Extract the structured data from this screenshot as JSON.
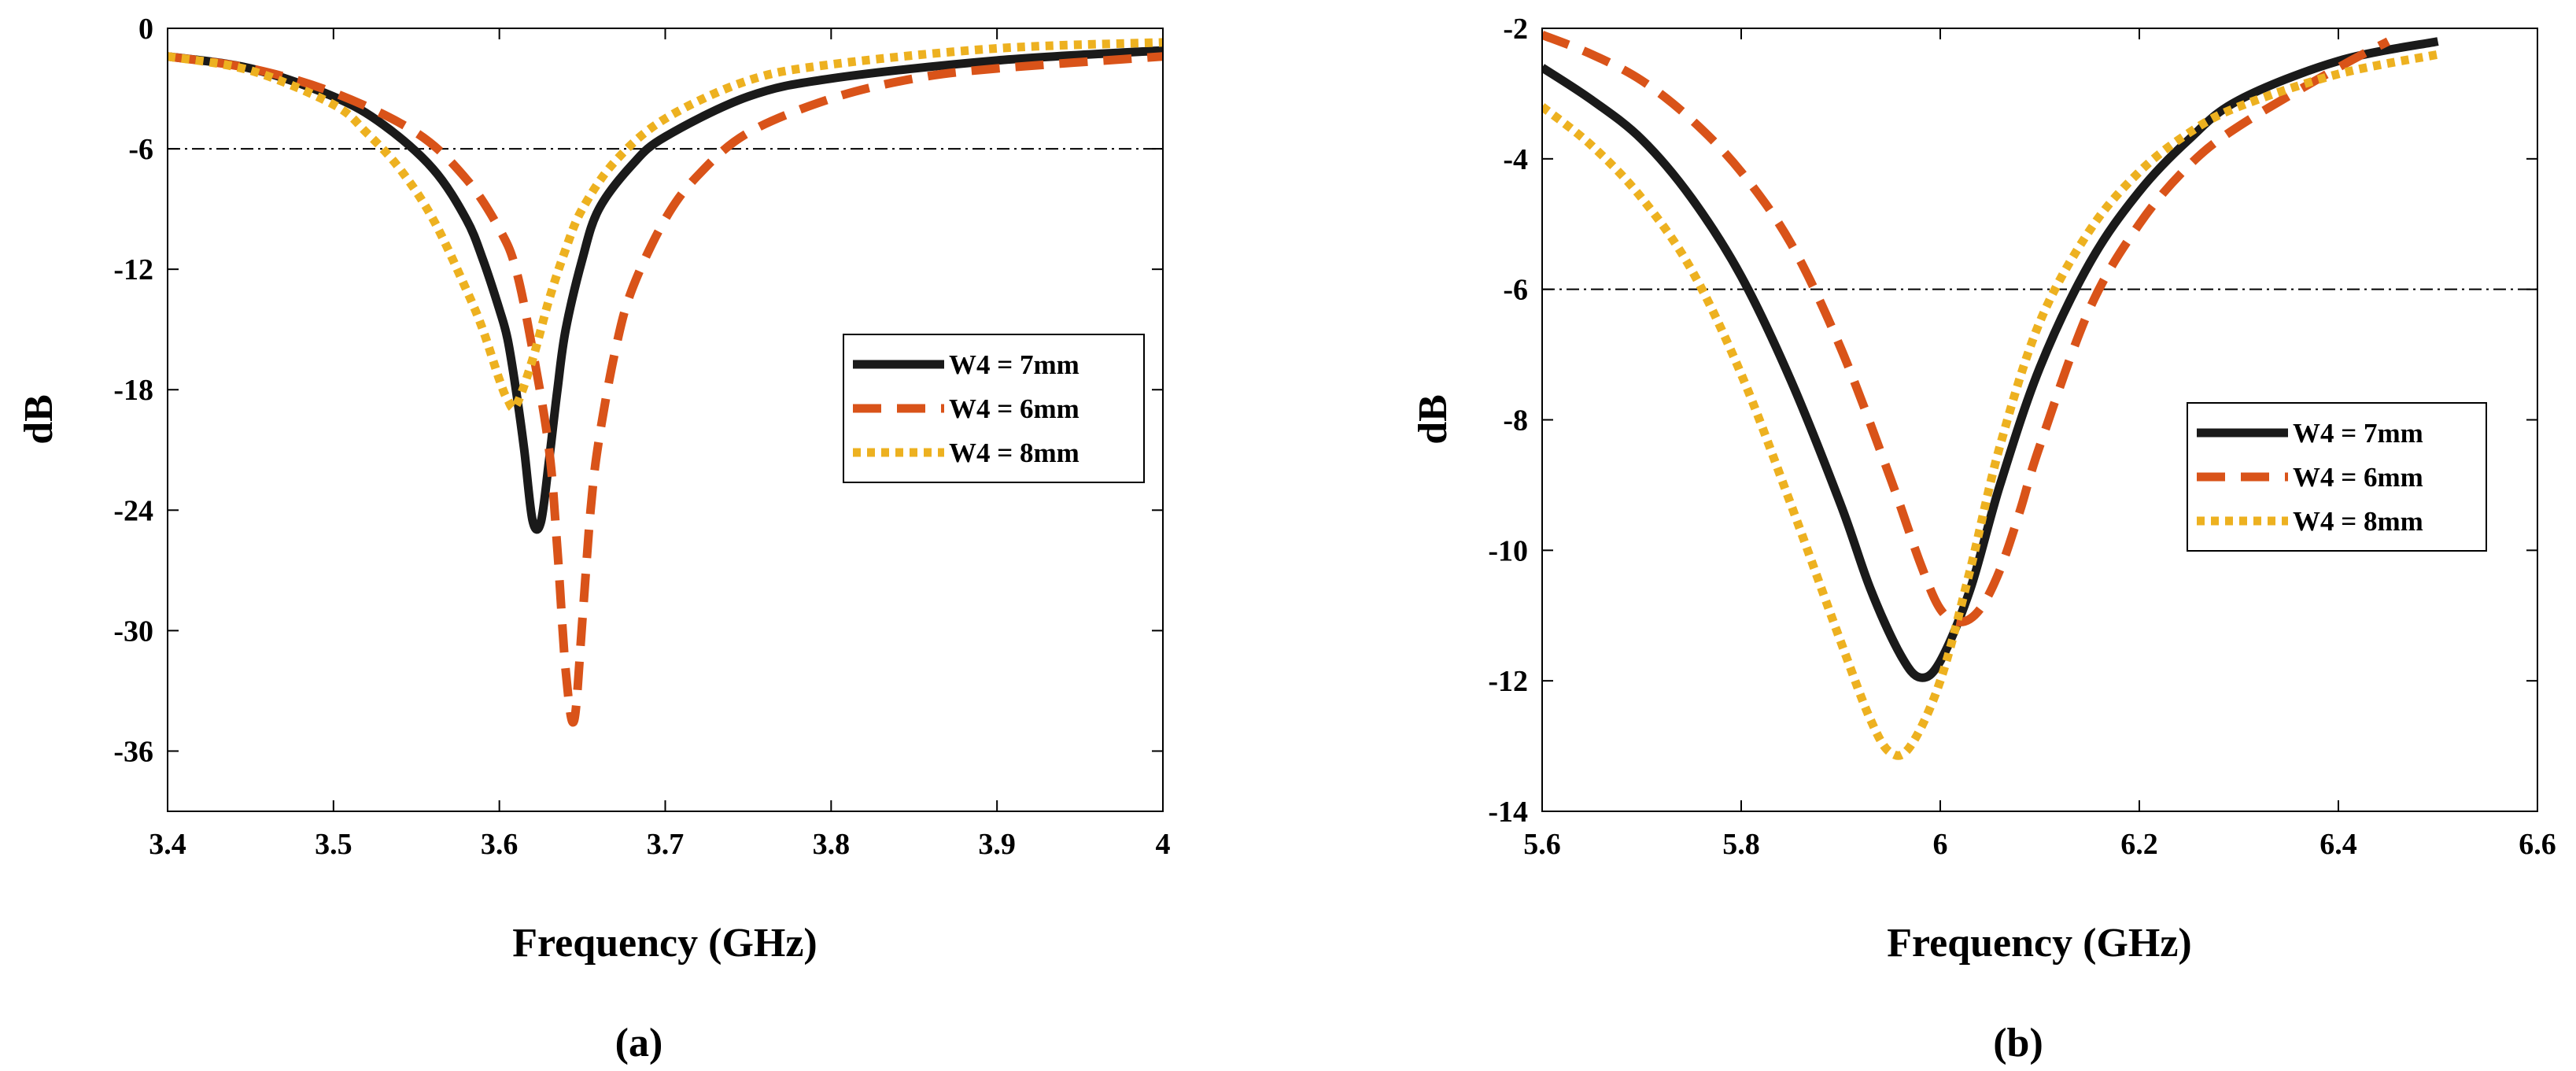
{
  "chart_data": [
    {
      "type": "line",
      "panel_label": "(a)",
      "xlabel": "Frequency (GHz)",
      "ylabel": "dB",
      "xlim": [
        3.4,
        4.0
      ],
      "ylim": [
        -39,
        0
      ],
      "xticks": [
        3.4,
        3.5,
        3.6,
        3.7,
        3.8,
        3.9,
        4.0
      ],
      "xtick_labels": [
        "3.4",
        "3.5",
        "3.6",
        "3.7",
        "3.8",
        "3.9",
        "4"
      ],
      "yticks": [
        0,
        -6,
        -12,
        -18,
        -24,
        -30,
        -36
      ],
      "ytick_labels": [
        "0",
        "-6",
        "-12",
        "-18",
        "-24",
        "-30",
        "-36"
      ],
      "reference_line": -6,
      "legend_position": "right",
      "series": [
        {
          "name": "W4 = 7mm",
          "color": "#1a1a1a",
          "style": "solid",
          "x": [
            3.4,
            3.45,
            3.5,
            3.53,
            3.56,
            3.58,
            3.59,
            3.6,
            3.605,
            3.61,
            3.615,
            3.62,
            3.625,
            3.63,
            3.635,
            3.64,
            3.65,
            3.66,
            3.68,
            3.7,
            3.75,
            3.8,
            3.9,
            4.0
          ],
          "y": [
            -1.4,
            -2.0,
            -3.4,
            -4.8,
            -7.0,
            -9.5,
            -11.5,
            -14.0,
            -15.5,
            -18.0,
            -21.0,
            -24.5,
            -24.6,
            -21.5,
            -18.0,
            -15.0,
            -11.5,
            -9.0,
            -6.8,
            -5.4,
            -3.4,
            -2.5,
            -1.6,
            -1.1
          ]
        },
        {
          "name": "W4 = 6mm",
          "color": "#d95319",
          "style": "dashed",
          "x": [
            3.4,
            3.45,
            3.5,
            3.55,
            3.58,
            3.6,
            3.61,
            3.62,
            3.63,
            3.635,
            3.64,
            3.645,
            3.65,
            3.655,
            3.66,
            3.67,
            3.68,
            3.7,
            3.72,
            3.75,
            3.8,
            3.85,
            3.9,
            4.0
          ],
          "y": [
            -1.4,
            -2.0,
            -3.2,
            -5.2,
            -7.5,
            -10.0,
            -12.0,
            -16.0,
            -21.0,
            -26.0,
            -32.0,
            -34.5,
            -29.5,
            -24.0,
            -20.5,
            -16.0,
            -13.0,
            -9.5,
            -7.3,
            -5.2,
            -3.5,
            -2.5,
            -2.0,
            -1.4
          ]
        },
        {
          "name": "W4 = 8mm",
          "color": "#edb120",
          "style": "dotted",
          "x": [
            3.4,
            3.45,
            3.5,
            3.52,
            3.54,
            3.56,
            3.58,
            3.59,
            3.6,
            3.605,
            3.61,
            3.62,
            3.63,
            3.64,
            3.65,
            3.67,
            3.7,
            3.75,
            3.8,
            3.9,
            4.0
          ],
          "y": [
            -1.4,
            -2.1,
            -3.8,
            -5.2,
            -7.0,
            -9.5,
            -13.0,
            -15.0,
            -17.5,
            -18.5,
            -18.8,
            -16.5,
            -13.5,
            -11.0,
            -9.0,
            -6.6,
            -4.5,
            -2.6,
            -1.8,
            -1.0,
            -0.7
          ]
        }
      ]
    },
    {
      "type": "line",
      "panel_label": "(b)",
      "xlabel": "Frequency (GHz)",
      "ylabel": "dB",
      "xlim": [
        5.6,
        6.6
      ],
      "ylim": [
        -14,
        -2
      ],
      "xticks": [
        5.6,
        5.8,
        6.0,
        6.2,
        6.4,
        6.6
      ],
      "xtick_labels": [
        "5.6",
        "5.8",
        "6",
        "6.2",
        "6.4",
        "6.6"
      ],
      "yticks": [
        -2,
        -4,
        -6,
        -8,
        -10,
        -12,
        -14
      ],
      "ytick_labels": [
        "-2",
        "-4",
        "-6",
        "-8",
        "-10",
        "-12",
        "-14"
      ],
      "reference_line": -6,
      "legend_position": "right",
      "series": [
        {
          "name": "W4 = 7mm",
          "color": "#1a1a1a",
          "style": "solid",
          "x": [
            5.6,
            5.65,
            5.7,
            5.75,
            5.8,
            5.85,
            5.9,
            5.93,
            5.96,
            5.98,
            6.0,
            6.03,
            6.06,
            6.1,
            6.15,
            6.2,
            6.25,
            6.3,
            6.4,
            6.5
          ],
          "y": [
            -2.6,
            -3.1,
            -3.7,
            -4.6,
            -5.8,
            -7.4,
            -9.3,
            -10.6,
            -11.6,
            -11.95,
            -11.7,
            -10.6,
            -9.0,
            -7.2,
            -5.6,
            -4.5,
            -3.7,
            -3.1,
            -2.5,
            -2.2
          ]
        },
        {
          "name": "W4 = 6mm",
          "color": "#d95319",
          "style": "dashed",
          "x": [
            5.6,
            5.65,
            5.7,
            5.75,
            5.8,
            5.85,
            5.9,
            5.95,
            5.98,
            6.0,
            6.02,
            6.04,
            6.06,
            6.08,
            6.1,
            6.15,
            6.2,
            6.25,
            6.3,
            6.4,
            6.45
          ],
          "y": [
            -2.1,
            -2.4,
            -2.8,
            -3.4,
            -4.2,
            -5.3,
            -6.9,
            -8.9,
            -10.2,
            -10.9,
            -11.1,
            -10.9,
            -10.3,
            -9.4,
            -8.4,
            -6.3,
            -5.0,
            -4.1,
            -3.5,
            -2.6,
            -2.2
          ]
        },
        {
          "name": "W4 = 8mm",
          "color": "#edb120",
          "style": "dotted",
          "x": [
            5.6,
            5.65,
            5.7,
            5.75,
            5.8,
            5.85,
            5.9,
            5.93,
            5.95,
            5.97,
            6.0,
            6.03,
            6.06,
            6.1,
            6.15,
            6.2,
            6.25,
            6.3,
            6.4,
            6.5
          ],
          "y": [
            -3.2,
            -3.8,
            -4.6,
            -5.7,
            -7.3,
            -9.3,
            -11.4,
            -12.6,
            -13.1,
            -13.0,
            -12.0,
            -10.3,
            -8.4,
            -6.5,
            -5.1,
            -4.2,
            -3.6,
            -3.2,
            -2.7,
            -2.4
          ]
        }
      ]
    }
  ]
}
